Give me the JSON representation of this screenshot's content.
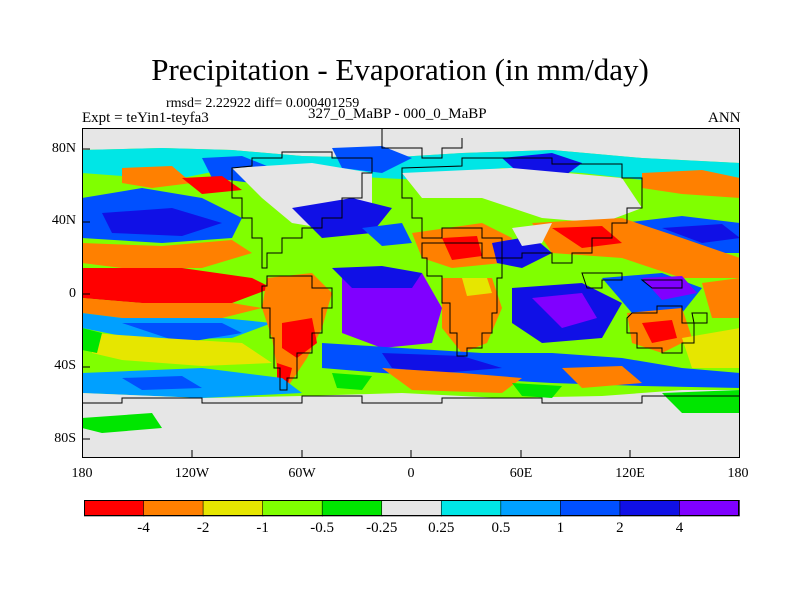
{
  "title": "Precipitation - Evaporation (in mm/day)",
  "stats": "rmsd= 2.22922 diff= 0.000401259",
  "experiment": "Expt = teYin1-teyfa3",
  "subtitle": "327_0_MaBP - 000_0_MaBP",
  "season": "ANN",
  "y_ticks": [
    "80N",
    "40N",
    "0",
    "40S",
    "80S"
  ],
  "x_ticks": [
    "180",
    "120W",
    "60W",
    "0",
    "60E",
    "120E",
    "180"
  ],
  "colorbar": {
    "labels": [
      "-4",
      "-2",
      "-1",
      "-0.5",
      "-0.25",
      "0.25",
      "0.5",
      "1",
      "2",
      "4"
    ],
    "colors": [
      "#ff0000",
      "#ff8000",
      "#e6e600",
      "#80ff00",
      "#00e600",
      "#e6e6e6",
      "#00e6e6",
      "#00a0ff",
      "#0050ff",
      "#1010e6",
      "#8000ff"
    ]
  }
}
